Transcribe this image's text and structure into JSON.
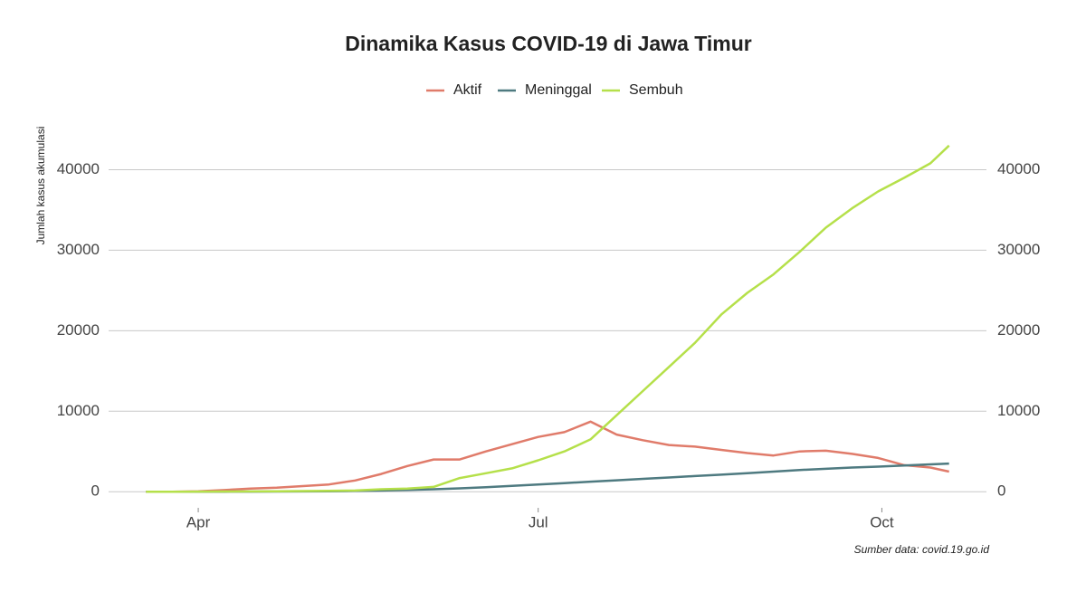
{
  "chart_data": {
    "type": "line",
    "title": "Dinamika Kasus COVID-19 di Jawa Timur",
    "y_label": "Jumlah kasus akumulasi",
    "caption": "Sumber data: covid.19.go.id",
    "x": [
      0,
      7,
      14,
      21,
      28,
      35,
      42,
      49,
      56,
      63,
      70,
      77,
      84,
      91,
      98,
      105,
      112,
      119,
      126,
      133,
      140,
      147,
      154,
      161,
      168,
      175,
      182,
      189,
      196,
      203,
      210,
      215
    ],
    "xlim": [
      -10,
      225
    ],
    "xticks": [
      {
        "value": 14,
        "label": "Apr"
      },
      {
        "value": 105,
        "label": "Jul"
      },
      {
        "value": 197,
        "label": "Oct"
      }
    ],
    "ylim": [
      -2000,
      45000
    ],
    "yticks": [
      0,
      10000,
      20000,
      30000,
      40000
    ],
    "grid": true,
    "legend": "top",
    "series": [
      {
        "name": "Aktif",
        "color": "#e07b6a",
        "values": [
          0,
          0,
          50,
          200,
          400,
          500,
          700,
          900,
          1400,
          2200,
          3200,
          4000,
          4000,
          5000,
          5900,
          6800,
          7400,
          8700,
          7100,
          6400,
          5800,
          5600,
          5200,
          4800,
          4500,
          5000,
          5100,
          4700,
          4200,
          3300,
          3000,
          2500
        ]
      },
      {
        "name": "Meninggal",
        "color": "#4e7a80",
        "values": [
          0,
          0,
          0,
          5,
          10,
          20,
          35,
          50,
          100,
          150,
          220,
          300,
          420,
          550,
          720,
          900,
          1070,
          1250,
          1420,
          1600,
          1770,
          1950,
          2120,
          2300,
          2500,
          2700,
          2850,
          3000,
          3120,
          3250,
          3400,
          3500
        ]
      },
      {
        "name": "Sembuh",
        "color": "#b5e04a",
        "values": [
          0,
          0,
          10,
          20,
          40,
          60,
          80,
          100,
          150,
          300,
          400,
          600,
          1700,
          2300,
          2900,
          3900,
          5000,
          6500,
          9500,
          12500,
          15500,
          18500,
          22000,
          24700,
          27000,
          29800,
          32800,
          35200,
          37300,
          39000,
          40800,
          43000
        ]
      }
    ]
  }
}
